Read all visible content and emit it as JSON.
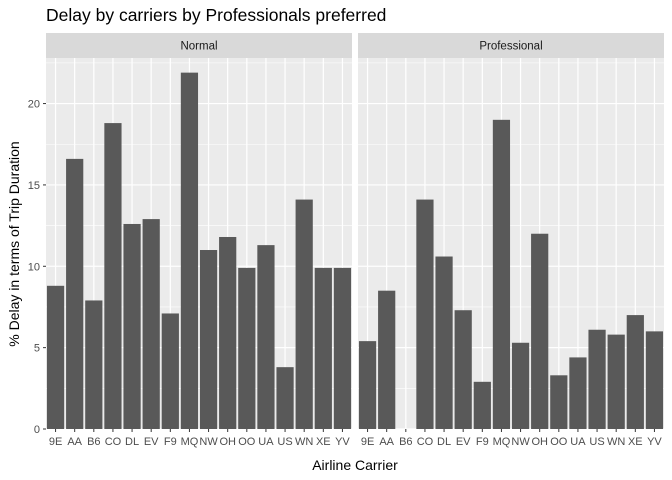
{
  "chart_data": {
    "type": "bar",
    "title": "Delay by carriers by Professionals preferred",
    "xlabel": "Airline Carrier",
    "ylabel": "% Delay in terms of Trip Duration",
    "ylim": [
      0,
      22.8
    ],
    "yticks": [
      "0",
      "5",
      "10",
      "15",
      "20"
    ],
    "grid": true,
    "bar_color": "#595959",
    "panel_background": "#ebebeb",
    "strip_background": "#d9d9d9",
    "categories": [
      "9E",
      "AA",
      "B6",
      "CO",
      "DL",
      "EV",
      "F9",
      "MQ",
      "NW",
      "OH",
      "OO",
      "UA",
      "US",
      "WN",
      "XE",
      "YV"
    ],
    "panels": [
      {
        "name": "Normal",
        "values": [
          8.8,
          16.6,
          7.9,
          18.8,
          12.6,
          12.9,
          7.1,
          21.9,
          11.0,
          11.8,
          9.9,
          11.3,
          3.8,
          14.1,
          9.9,
          9.9
        ]
      },
      {
        "name": "Professional",
        "values": [
          5.4,
          8.5,
          0,
          14.1,
          10.6,
          7.3,
          2.9,
          19.0,
          5.3,
          12.0,
          3.3,
          4.4,
          6.1,
          5.8,
          7.0,
          6.0
        ]
      }
    ]
  }
}
